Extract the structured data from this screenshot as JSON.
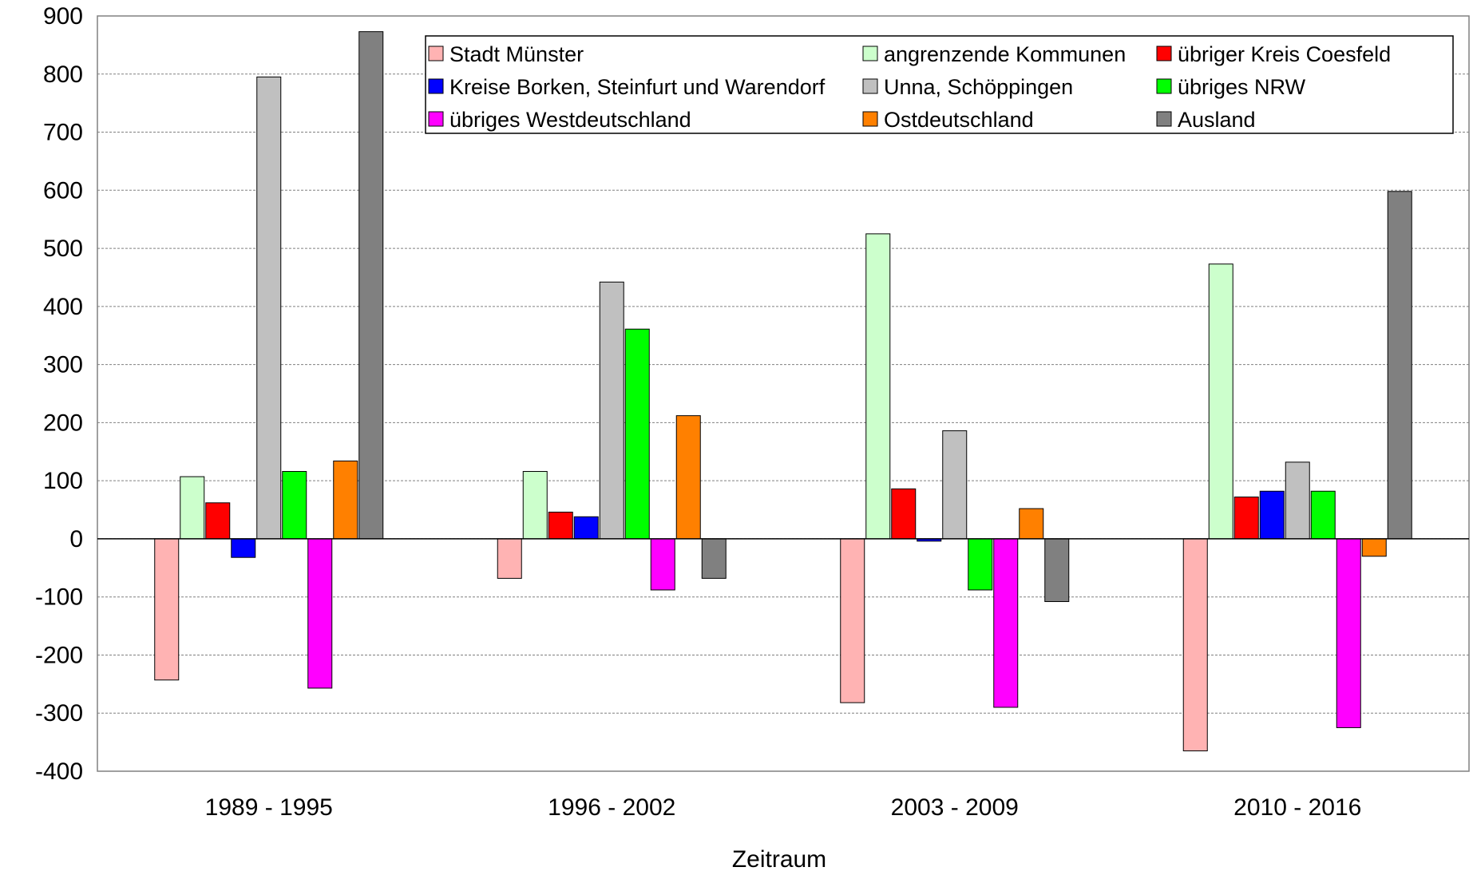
{
  "chart_data": {
    "type": "bar",
    "title": "",
    "xlabel": "Zeitraum",
    "ylabel": "",
    "ylim": [
      -400,
      900
    ],
    "yticks": [
      -400,
      -300,
      -200,
      -100,
      0,
      100,
      200,
      300,
      400,
      500,
      600,
      700,
      800,
      900
    ],
    "grid": true,
    "legend_position": "top-right",
    "categories": [
      "1989 - 1995",
      "1996 - 2002",
      "2003 - 2009",
      "2010 - 2016"
    ],
    "series": [
      {
        "name": "Stadt Münster",
        "color": "#ffb3b3",
        "values": [
          -243,
          -68,
          -282,
          -365
        ]
      },
      {
        "name": "angrenzende Kommunen",
        "color": "#ccffcc",
        "values": [
          107,
          116,
          525,
          473
        ]
      },
      {
        "name": "übriger Kreis Coesfeld",
        "color": "#ff0000",
        "values": [
          62,
          46,
          86,
          72
        ]
      },
      {
        "name": "Kreise Borken, Steinfurt und Warendorf",
        "color": "#0000ff",
        "values": [
          -32,
          38,
          -4,
          82
        ]
      },
      {
        "name": "Unna, Schöppingen",
        "color": "#c0c0c0",
        "values": [
          795,
          442,
          186,
          132
        ]
      },
      {
        "name": "übriges NRW",
        "color": "#00ff00",
        "values": [
          116,
          361,
          -88,
          82
        ]
      },
      {
        "name": "übriges Westdeutschland",
        "color": "#ff00ff",
        "values": [
          -257,
          -88,
          -290,
          -325
        ]
      },
      {
        "name": "Ostdeutschland",
        "color": "#ff8000",
        "values": [
          134,
          212,
          52,
          -30
        ]
      },
      {
        "name": "Ausland",
        "color": "#808080",
        "values": [
          873,
          -68,
          -108,
          598
        ]
      }
    ]
  }
}
